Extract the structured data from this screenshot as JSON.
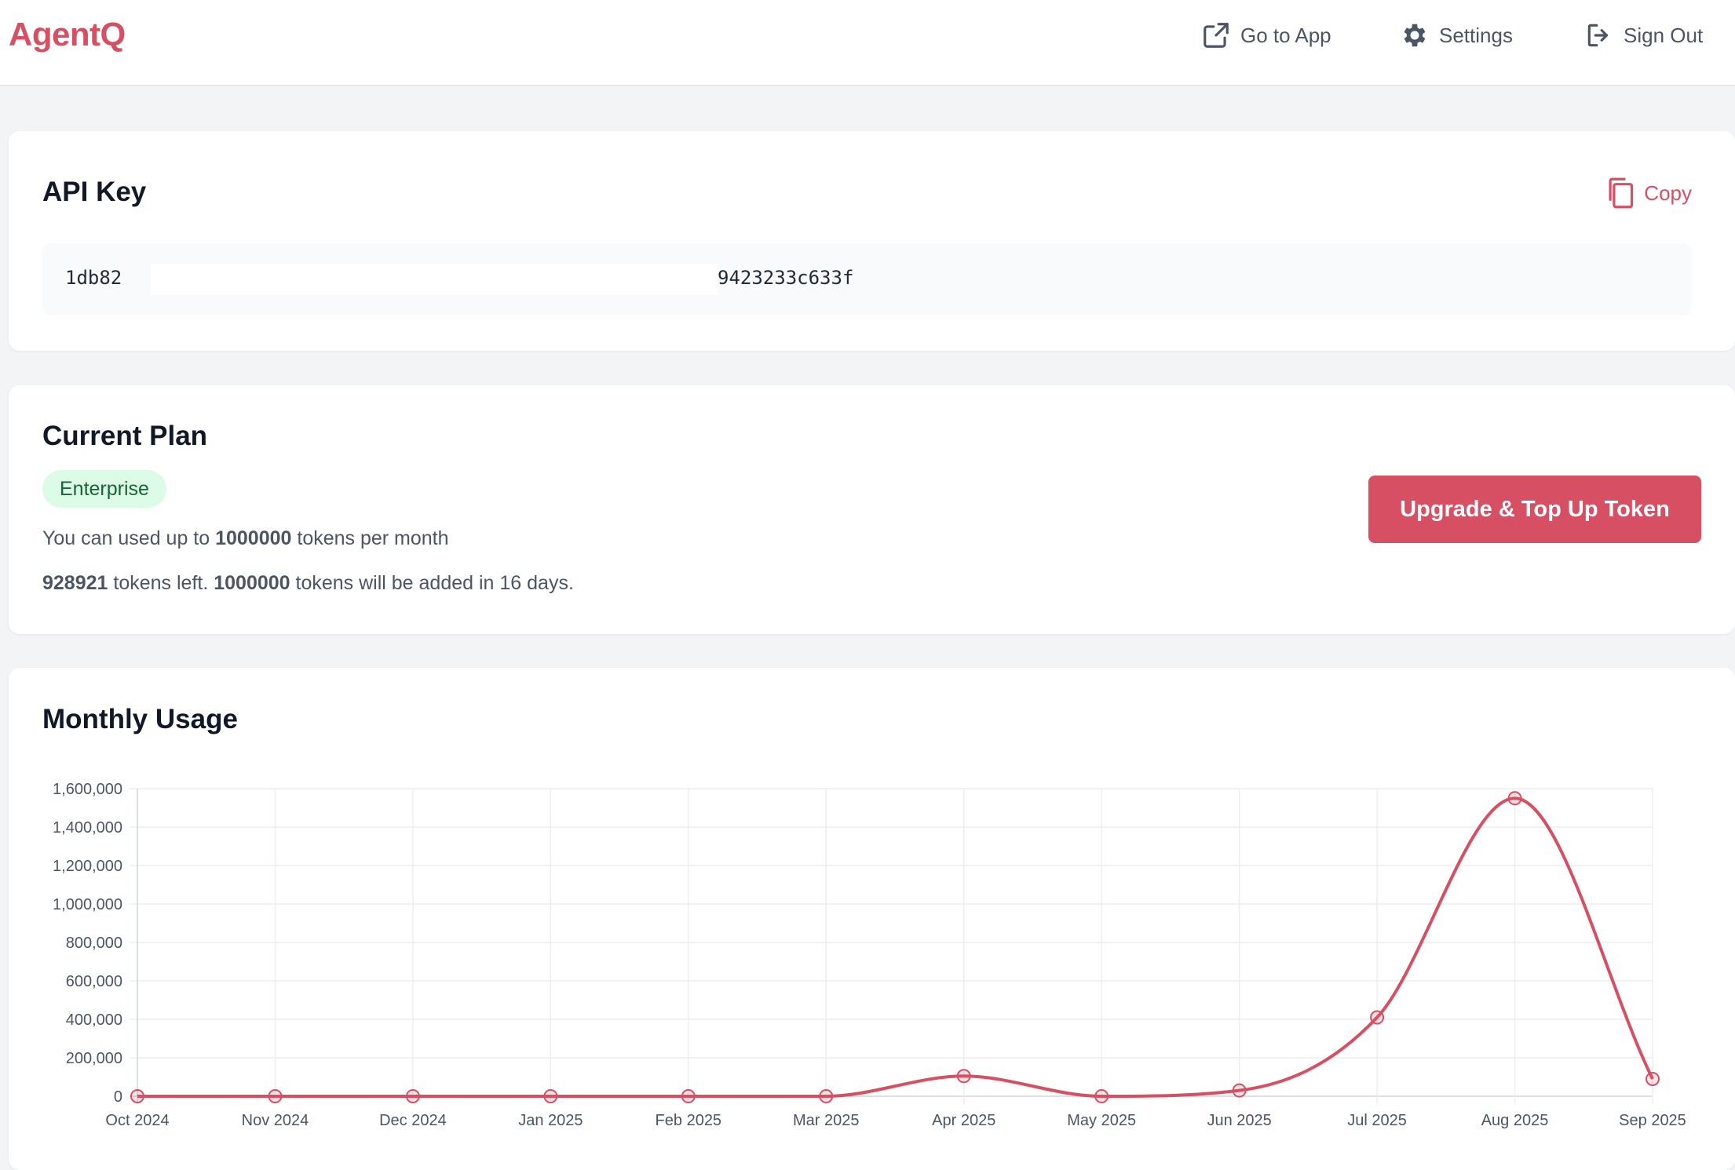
{
  "header": {
    "logo": "AgentQ",
    "nav": [
      {
        "label": "Go to App",
        "icon": "external-link-icon"
      },
      {
        "label": "Settings",
        "icon": "gear-icon"
      },
      {
        "label": "Sign Out",
        "icon": "sign-out-icon"
      }
    ]
  },
  "api_key": {
    "title": "API Key",
    "copy_label": "Copy",
    "key_visible_start": "1db82",
    "key_visible_end": "9423233c633f"
  },
  "plan": {
    "title": "Current Plan",
    "badge": "Enterprise",
    "line1_prefix": "You can used up to ",
    "line1_value": "1000000",
    "line1_suffix": " tokens per month",
    "line2_left": "928921",
    "line2_mid": " tokens left. ",
    "line2_value": "1000000",
    "line2_suffix": " tokens will be added in 16 days.",
    "upgrade_label": "Upgrade & Top Up Token"
  },
  "usage": {
    "title": "Monthly Usage"
  },
  "colors": {
    "accent": "#d64f63",
    "badge_bg": "#dcfce7",
    "badge_text": "#166534"
  },
  "chart_data": {
    "type": "line",
    "title": "Monthly Usage",
    "categories": [
      "Oct 2024",
      "Nov 2024",
      "Dec 2024",
      "Jan 2025",
      "Feb 2025",
      "Mar 2025",
      "Apr 2025",
      "May 2025",
      "Jun 2025",
      "Jul 2025",
      "Aug 2025",
      "Sep 2025"
    ],
    "series": [
      {
        "values": [
          0,
          0,
          0,
          0,
          0,
          0,
          105000,
          0,
          30000,
          410000,
          1550000,
          90000
        ]
      }
    ],
    "ylim": [
      0,
      1600000
    ],
    "yticks": [
      0,
      200000,
      400000,
      600000,
      800000,
      1000000,
      1200000,
      1400000,
      1600000
    ],
    "ytick_labels": [
      "0",
      "200,000",
      "400,000",
      "600,000",
      "800,000",
      "1,000,000",
      "1,200,000",
      "1,400,000",
      "1,600,000"
    ],
    "grid": true,
    "legend": "none"
  }
}
